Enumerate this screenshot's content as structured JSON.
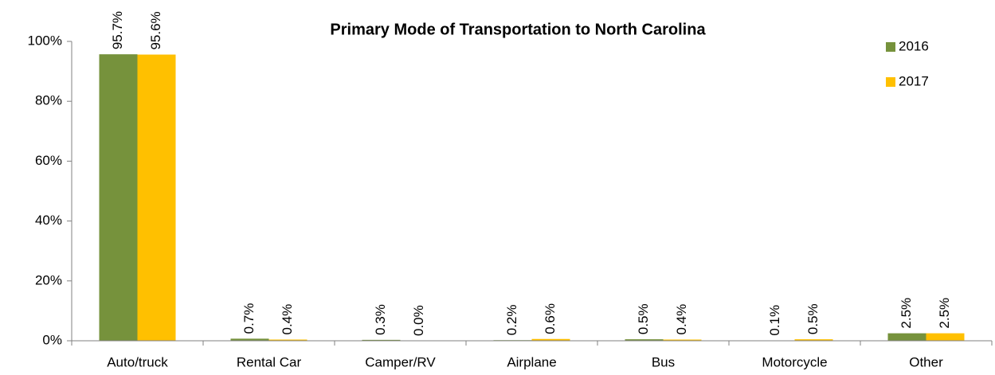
{
  "chart_data": {
    "type": "bar",
    "title": "Primary Mode of Transportation to North Carolina",
    "categories": [
      "Auto/truck",
      "Rental Car",
      "Camper/RV",
      "Airplane",
      "Bus",
      "Motorcycle",
      "Other"
    ],
    "series": [
      {
        "name": "2016",
        "color": "#76923c",
        "values": [
          95.7,
          0.7,
          0.3,
          0.2,
          0.5,
          0.1,
          2.5
        ],
        "value_labels": [
          "95.7%",
          "0.7%",
          "0.3%",
          "0.2%",
          "0.5%",
          "0.1%",
          "2.5%"
        ]
      },
      {
        "name": "2017",
        "color": "#ffc000",
        "values": [
          95.6,
          0.4,
          0.0,
          0.6,
          0.4,
          0.5,
          2.5
        ],
        "value_labels": [
          "95.6%",
          "0.4%",
          "0.0%",
          "0.6%",
          "0.4%",
          "0.5%",
          "2.5%"
        ]
      }
    ],
    "ylim": [
      0,
      100
    ],
    "yticks": [
      {
        "value": 0,
        "label": "0%"
      },
      {
        "value": 20,
        "label": "20%"
      },
      {
        "value": 40,
        "label": "40%"
      },
      {
        "value": 60,
        "label": "60%"
      },
      {
        "value": 80,
        "label": "80%"
      },
      {
        "value": 100,
        "label": "100%"
      }
    ],
    "grid": false,
    "legend": "upper right"
  }
}
